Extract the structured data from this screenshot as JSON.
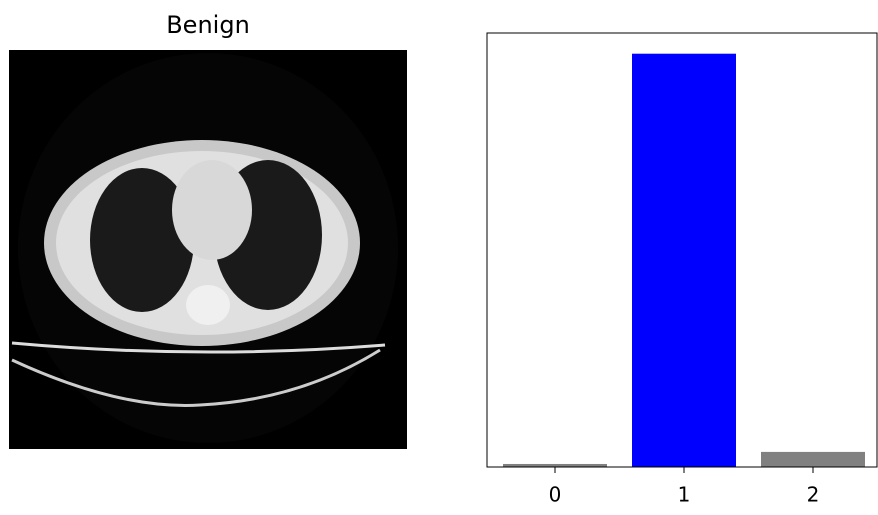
{
  "image_title": "Benign",
  "chart_data": {
    "type": "bar",
    "categories": [
      "0",
      "1",
      "2"
    ],
    "values": [
      0.007,
      0.958,
      0.035
    ],
    "colors": [
      "#808080",
      "#0000ff",
      "#808080"
    ],
    "ylim": [
      0,
      1.006
    ]
  }
}
